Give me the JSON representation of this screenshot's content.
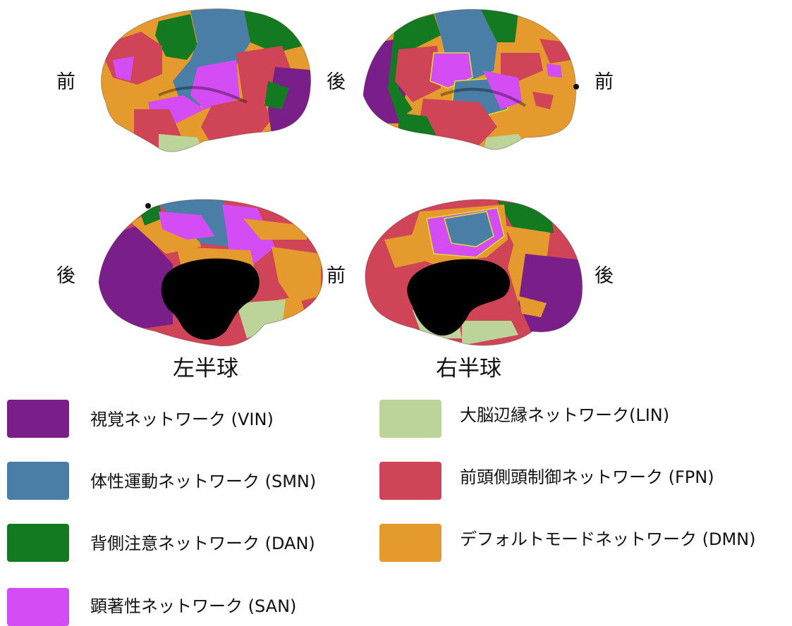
{
  "direction_labels": {
    "front": "前",
    "back": "後"
  },
  "hemispheres": {
    "left": "左半球",
    "right": "右半球"
  },
  "colors": {
    "vin": "#7a1f8a",
    "smn": "#4a7ea6",
    "dan": "#137a22",
    "san": "#d44cf3",
    "lin": "#bcd39a",
    "fpn": "#cf4456",
    "dmn": "#e49a2c",
    "medial_wall": "#000000"
  },
  "legend": [
    {
      "id": "vin",
      "label": "視覚ネットワーク (VIN)",
      "color": "#7a1f8a"
    },
    {
      "id": "smn",
      "label": "体性運動ネットワーク (SMN)",
      "color": "#4a7ea6"
    },
    {
      "id": "dan",
      "label": "背側注意ネットワーク (DAN)",
      "color": "#137a22"
    },
    {
      "id": "san",
      "label": "顕著性ネットワーク (SAN)",
      "color": "#d44cf3"
    },
    {
      "id": "lin",
      "label": "大脳辺縁ネットワーク(LIN)",
      "color": "#bcd39a"
    },
    {
      "id": "fpn",
      "label": "前頭側頭制御ネットワーク (FPN)",
      "color": "#cf4456"
    },
    {
      "id": "dmn",
      "label": "デフォルトモードネットワーク (DMN)",
      "color": "#e49a2c"
    }
  ]
}
